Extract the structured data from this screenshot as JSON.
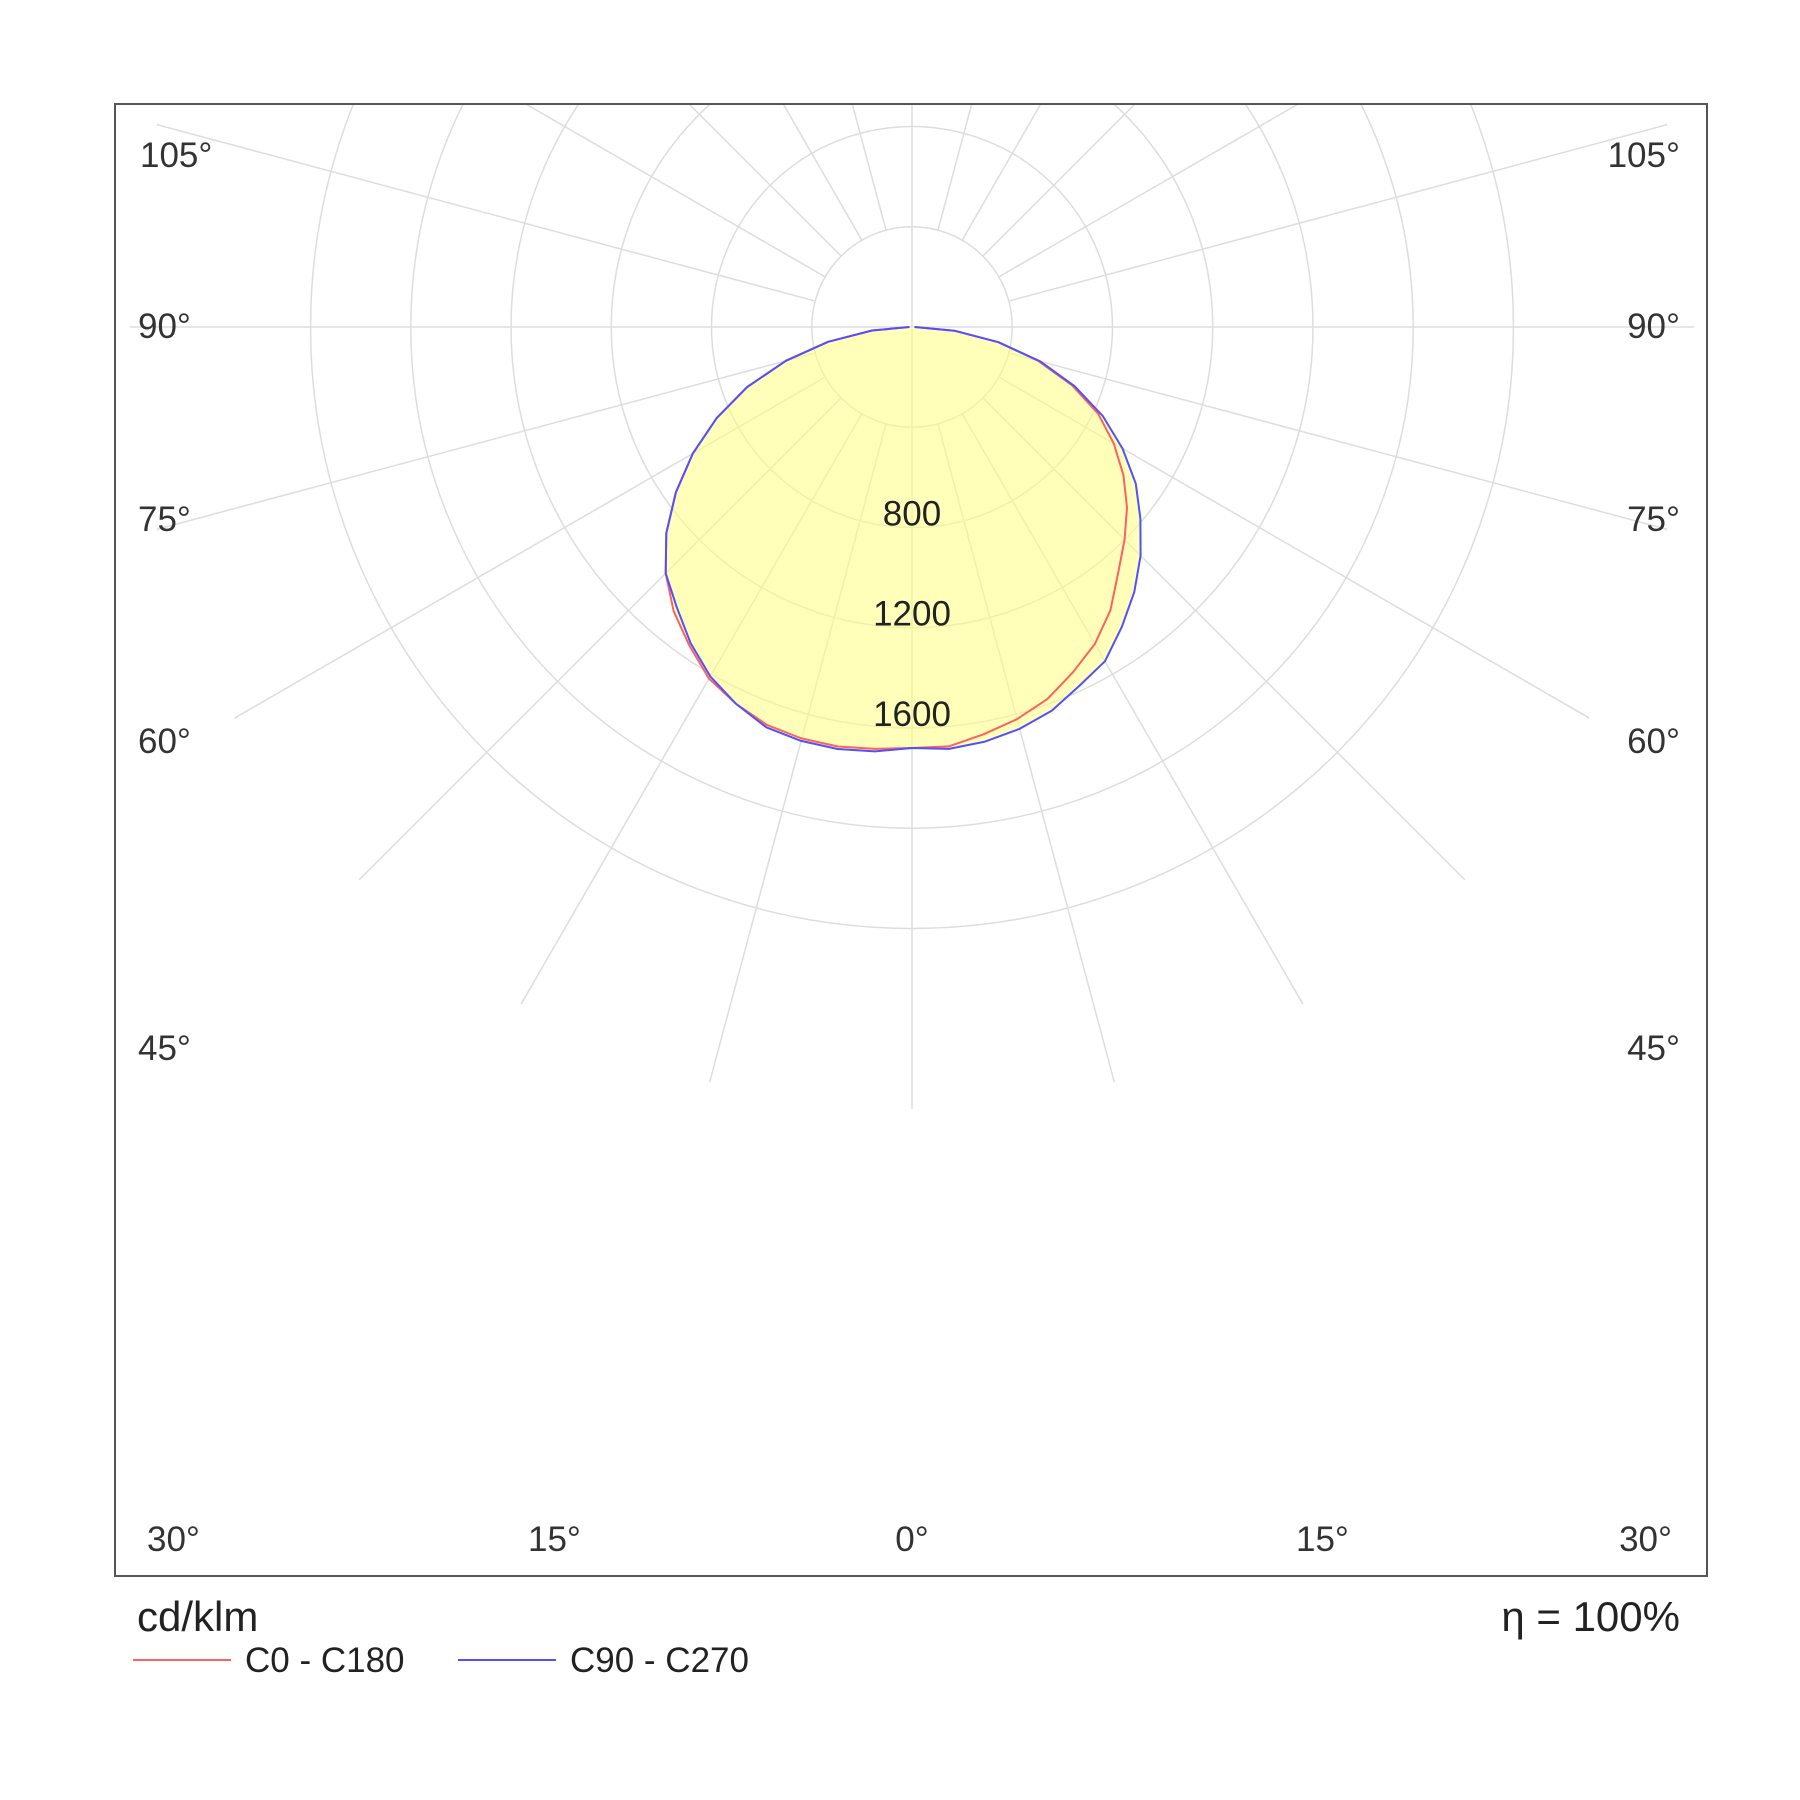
{
  "chart_data": {
    "type": "polar",
    "unit": "cd/klm",
    "efficiency": "η = 100%",
    "rings": [
      400,
      800,
      1200,
      1600,
      2000,
      2400
    ],
    "ring_labels": [
      {
        "value": 800,
        "label": "800"
      },
      {
        "value": 1200,
        "label": "1200"
      },
      {
        "value": 1600,
        "label": "1600"
      }
    ],
    "angle_labels": [
      {
        "angle": 105,
        "label": "105°"
      },
      {
        "angle": 90,
        "label": "90°"
      },
      {
        "angle": 75,
        "label": "75°"
      },
      {
        "angle": 60,
        "label": "60°"
      },
      {
        "angle": 45,
        "label": "45°"
      },
      {
        "angle": 30,
        "label": "30°"
      },
      {
        "angle": 15,
        "label": "15°"
      },
      {
        "angle": 0,
        "label": "0°"
      }
    ],
    "series": [
      {
        "name": "C0 - C180",
        "color": "#ff6060",
        "points": [
          [
            -90,
            10
          ],
          [
            -85,
            160
          ],
          [
            -80,
            340
          ],
          [
            -75,
            520
          ],
          [
            -70,
            700
          ],
          [
            -65,
            860
          ],
          [
            -60,
            1010
          ],
          [
            -55,
            1150
          ],
          [
            -50,
            1280
          ],
          [
            -45,
            1390
          ],
          [
            -40,
            1480
          ],
          [
            -35,
            1550
          ],
          [
            -30,
            1620
          ],
          [
            -25,
            1660
          ],
          [
            -20,
            1690
          ],
          [
            -15,
            1700
          ],
          [
            -10,
            1700
          ],
          [
            -5,
            1690
          ],
          [
            0,
            1680
          ],
          [
            5,
            1680
          ],
          [
            10,
            1650
          ],
          [
            15,
            1620
          ],
          [
            20,
            1580
          ],
          [
            25,
            1520
          ],
          [
            30,
            1460
          ],
          [
            35,
            1380
          ],
          [
            40,
            1280
          ],
          [
            45,
            1200
          ],
          [
            50,
            1120
          ],
          [
            55,
            1030
          ],
          [
            60,
            930
          ],
          [
            65,
            820
          ],
          [
            70,
            680
          ],
          [
            75,
            520
          ],
          [
            80,
            350
          ],
          [
            85,
            170
          ],
          [
            90,
            10
          ]
        ]
      },
      {
        "name": "C90 - C270",
        "color": "#5050ff",
        "points": [
          [
            -90,
            10
          ],
          [
            -85,
            160
          ],
          [
            -80,
            340
          ],
          [
            -75,
            520
          ],
          [
            -70,
            700
          ],
          [
            -65,
            860
          ],
          [
            -60,
            1010
          ],
          [
            -55,
            1150
          ],
          [
            -50,
            1280
          ],
          [
            -45,
            1390
          ],
          [
            -40,
            1460
          ],
          [
            -35,
            1540
          ],
          [
            -30,
            1610
          ],
          [
            -25,
            1660
          ],
          [
            -20,
            1700
          ],
          [
            -15,
            1710
          ],
          [
            -10,
            1710
          ],
          [
            -5,
            1700
          ],
          [
            0,
            1680
          ],
          [
            5,
            1690
          ],
          [
            10,
            1680
          ],
          [
            15,
            1660
          ],
          [
            20,
            1630
          ],
          [
            25,
            1580
          ],
          [
            30,
            1540
          ],
          [
            35,
            1460
          ],
          [
            40,
            1380
          ],
          [
            45,
            1290
          ],
          [
            50,
            1190
          ],
          [
            55,
            1090
          ],
          [
            60,
            970
          ],
          [
            65,
            840
          ],
          [
            70,
            690
          ],
          [
            75,
            530
          ],
          [
            80,
            350
          ],
          [
            85,
            170
          ],
          [
            90,
            10
          ]
        ]
      }
    ]
  }
}
